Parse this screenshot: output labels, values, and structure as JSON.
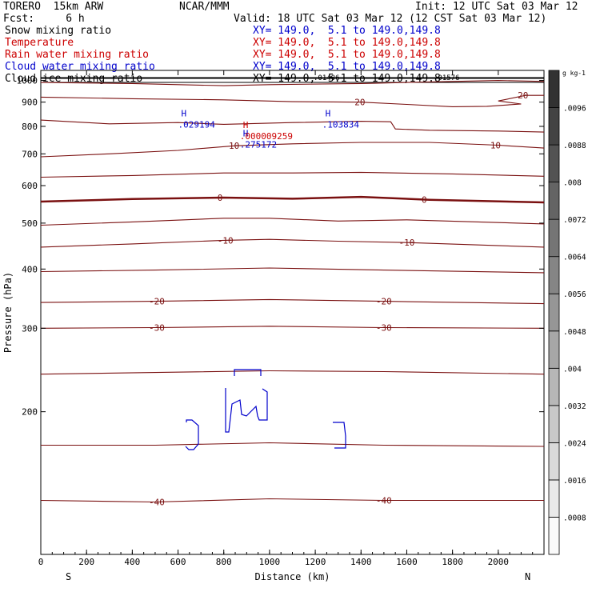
{
  "header": {
    "model": "TORERO  15km ARW",
    "center": "NCAR/MMM",
    "init": "Init: 12 UTC Sat 03 Mar 12",
    "fcst": "Fcst:     6 h",
    "valid": "Valid: 18 UTC Sat 03 Mar 12 (12 CST Sat 03 Mar 12)"
  },
  "fields": [
    {
      "name": "Snow mixing ratio",
      "xy": "XY= 149.0,  5.1 to 149.0,149.8",
      "color": "#000000"
    },
    {
      "name": "Temperature",
      "xy": "XY= 149.0,  5.1 to 149.0,149.8",
      "color": "#cc0000"
    },
    {
      "name": "Rain water mixing ratio",
      "xy": "XY= 149.0,  5.1 to 149.0,149.8",
      "color": "#cc0000"
    },
    {
      "name": "Cloud water mixing ratio",
      "xy": "XY= 149.0,  5.1 to 149.0,149.8",
      "color": "#0000cc"
    },
    {
      "name": "Cloud ice mixing ratio",
      "xy": "XY= 149.0,  5.1 to 149.0,149.8",
      "color": "#000000"
    }
  ],
  "chart_data": {
    "type": "contour",
    "xlabel": "Distance (km)",
    "ylabel": "Pressure (hPa)",
    "xlim": [
      0,
      2200
    ],
    "ylim": [
      1050,
      100
    ],
    "x_ticks": [
      0,
      200,
      400,
      600,
      800,
      1000,
      1200,
      1400,
      1600,
      1800,
      2000
    ],
    "y_ticks": [
      200,
      300,
      400,
      500,
      600,
      700,
      800,
      900,
      1000
    ],
    "x_end_labels": {
      "left": "S",
      "right": "N"
    },
    "colorbar": {
      "unit": "g kg-1",
      "levels": [
        0.0008,
        0.0016,
        0.0024,
        0.0032,
        0.004,
        0.0048,
        0.0056,
        0.0064,
        0.0072,
        0.008,
        0.0088,
        0.0096
      ],
      "labels": [
        ".0008",
        ".0016",
        ".0024",
        ".0032",
        ".004",
        ".0048",
        ".0056",
        ".0064",
        ".0072",
        ".008",
        ".0088",
        ".0096"
      ]
    },
    "temperature_isotherms": [
      {
        "value": -40,
        "points": [
          [
            0,
            130
          ],
          [
            500,
            129
          ],
          [
            1000,
            131
          ],
          [
            1500,
            130
          ],
          [
            2200,
            130
          ]
        ]
      },
      {
        "value": -35,
        "points": [
          [
            0,
            170
          ],
          [
            500,
            170
          ],
          [
            1000,
            172
          ],
          [
            1500,
            170
          ],
          [
            2200,
            169
          ]
        ]
      },
      {
        "value": -30,
        "points": [
          [
            0,
            300
          ],
          [
            500,
            301
          ],
          [
            1000,
            303
          ],
          [
            1500,
            301
          ],
          [
            2200,
            300
          ]
        ]
      },
      {
        "value": -25,
        "points": [
          [
            0,
            240
          ],
          [
            500,
            242
          ],
          [
            1000,
            244
          ],
          [
            1500,
            243
          ],
          [
            2200,
            240
          ]
        ]
      },
      {
        "value": -20,
        "points": [
          [
            0,
            340
          ],
          [
            500,
            342
          ],
          [
            1000,
            345
          ],
          [
            1500,
            342
          ],
          [
            2200,
            338
          ]
        ]
      },
      {
        "value": -15,
        "points": [
          [
            0,
            395
          ],
          [
            500,
            398
          ],
          [
            1000,
            402
          ],
          [
            1500,
            398
          ],
          [
            2200,
            393
          ]
        ]
      },
      {
        "value": -10,
        "points": [
          [
            0,
            445
          ],
          [
            400,
            452
          ],
          [
            800,
            460
          ],
          [
            1000,
            462
          ],
          [
            1300,
            458
          ],
          [
            1600,
            455
          ],
          [
            2200,
            445
          ]
        ]
      },
      {
        "value": -5,
        "points": [
          [
            0,
            495
          ],
          [
            400,
            503
          ],
          [
            800,
            512
          ],
          [
            1000,
            512
          ],
          [
            1300,
            505
          ],
          [
            1600,
            508
          ],
          [
            2200,
            498
          ]
        ]
      },
      {
        "value": 0,
        "points": [
          [
            0,
            555
          ],
          [
            400,
            562
          ],
          [
            800,
            566
          ],
          [
            1100,
            563
          ],
          [
            1400,
            568
          ],
          [
            1700,
            560
          ],
          [
            2200,
            553
          ]
        ]
      },
      {
        "value": 5,
        "points": [
          [
            0,
            625
          ],
          [
            400,
            630
          ],
          [
            800,
            638
          ],
          [
            1100,
            638
          ],
          [
            1400,
            640
          ],
          [
            1800,
            635
          ],
          [
            2200,
            628
          ]
        ]
      },
      {
        "value": 10,
        "points": [
          [
            0,
            690
          ],
          [
            300,
            700
          ],
          [
            600,
            712
          ],
          [
            850,
            728
          ],
          [
            1100,
            735
          ],
          [
            1400,
            740
          ],
          [
            1700,
            740
          ],
          [
            2000,
            730
          ],
          [
            2200,
            720
          ]
        ]
      },
      {
        "value": 15,
        "points": [
          [
            0,
            825
          ],
          [
            300,
            810
          ],
          [
            600,
            815
          ],
          [
            800,
            808
          ],
          [
            1100,
            815
          ],
          [
            1400,
            820
          ],
          [
            1530,
            818
          ],
          [
            1550,
            790
          ],
          [
            1700,
            785
          ],
          [
            2000,
            782
          ],
          [
            2200,
            778
          ]
        ]
      },
      {
        "value": 20,
        "points": [
          [
            0,
            922
          ],
          [
            400,
            915
          ],
          [
            800,
            910
          ],
          [
            1100,
            902
          ],
          [
            1400,
            900
          ],
          [
            1600,
            890
          ],
          [
            1800,
            880
          ],
          [
            1950,
            882
          ],
          [
            2100,
            892
          ],
          [
            2000,
            905
          ],
          [
            2120,
            930
          ],
          [
            2200,
            930
          ]
        ]
      },
      {
        "value": 25,
        "points": [
          [
            0,
            990
          ],
          [
            400,
            985
          ],
          [
            800,
            975
          ],
          [
            1000,
            980
          ],
          [
            1400,
            985
          ],
          [
            1800,
            995
          ],
          [
            2000,
            1000
          ],
          [
            2200,
            995
          ]
        ]
      }
    ],
    "max_labels": [
      {
        "field": "cloud water",
        "mark": "H",
        "value": ".275172",
        "x": 870,
        "p": 745
      },
      {
        "field": "rain water",
        "mark": "H",
        "value": ".000009259",
        "x": 870,
        "p": 775
      },
      {
        "field": "cloud water",
        "mark": "H",
        "value": ".029194",
        "x": 600,
        "p": 820
      },
      {
        "field": "cloud water",
        "mark": "H",
        "value": ".103834",
        "x": 1230,
        "p": 820
      }
    ],
    "top_labels": [
      ".01406",
      ".01576"
    ]
  }
}
